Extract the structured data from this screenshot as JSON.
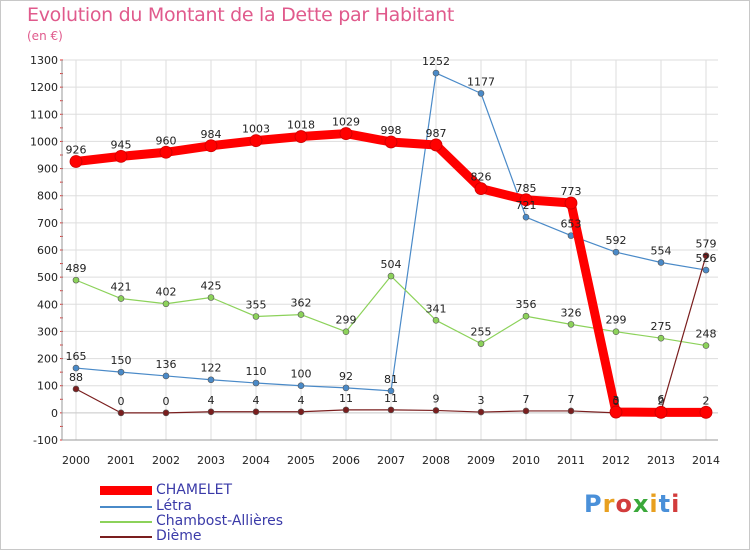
{
  "header": {
    "title": "Evolution du Montant de la Dette par Habitant",
    "unit": "(en €)"
  },
  "logo": {
    "text": "Proxiti",
    "colors": [
      "#4a90d9",
      "#e8a020",
      "#d23c3c",
      "#3aa83a",
      "#e8a020",
      "#4a90d9",
      "#d23c3c"
    ]
  },
  "chart_data": {
    "type": "line",
    "title": "Evolution du Montant de la Dette par Habitant",
    "subtitle": "(en €)",
    "xlabel": "",
    "ylabel": "",
    "ylim": [
      -100,
      1300
    ],
    "yticks": [
      "-100",
      "0",
      "100",
      "200",
      "300",
      "400",
      "500",
      "600",
      "700",
      "800",
      "900",
      "1000",
      "1100",
      "1200",
      "1300"
    ],
    "yticks_values": [
      -100,
      0,
      100,
      200,
      300,
      400,
      500,
      600,
      700,
      800,
      900,
      1000,
      1100,
      1200,
      1300
    ],
    "x": [
      "2000",
      "2001",
      "2002",
      "2003",
      "2004",
      "2005",
      "2006",
      "2007",
      "2008",
      "2009",
      "2010",
      "2011",
      "2012",
      "2013",
      "2014"
    ],
    "grid": true,
    "legend_position": "bottom-left",
    "series": [
      {
        "name": "CHAMELET",
        "color": "#ff0000",
        "values": [
          926,
          945,
          960,
          984,
          1003,
          1018,
          1029,
          998,
          987,
          826,
          785,
          773,
          3,
          2,
          2
        ],
        "labels": [
          "926",
          "945",
          "960",
          "984",
          "1003",
          "1018",
          "1029",
          "998",
          "987",
          "826",
          "785",
          "773",
          "3",
          "2",
          "2"
        ]
      },
      {
        "name": "Létra",
        "color": "#4a8ac8",
        "values": [
          165,
          150,
          136,
          122,
          110,
          100,
          92,
          81,
          1252,
          1177,
          721,
          653,
          592,
          554,
          526
        ],
        "labels": [
          "165",
          "150",
          "136",
          "122",
          "110",
          "100",
          "92",
          "81",
          "1252",
          "1177",
          "721",
          "653",
          "592",
          "554",
          "526"
        ]
      },
      {
        "name": "Chambost-Allières",
        "color": "#8cd25a",
        "values": [
          489,
          421,
          402,
          425,
          355,
          362,
          299,
          504,
          341,
          255,
          356,
          326,
          299,
          275,
          248
        ],
        "labels": [
          "489",
          "421",
          "402",
          "425",
          "355",
          "362",
          "299",
          "504",
          "341",
          "255",
          "356",
          "326",
          "299",
          "275",
          "248"
        ]
      },
      {
        "name": "Dième",
        "color": "#7a1e1e",
        "values": [
          88,
          0,
          0,
          4,
          4,
          4,
          11,
          11,
          9,
          3,
          7,
          7,
          0,
          6,
          579
        ],
        "labels": [
          "88",
          "0",
          "0",
          "4",
          "4",
          "4",
          "11",
          "11",
          "9",
          "3",
          "7",
          "7",
          "0",
          "6",
          "579"
        ]
      }
    ]
  }
}
